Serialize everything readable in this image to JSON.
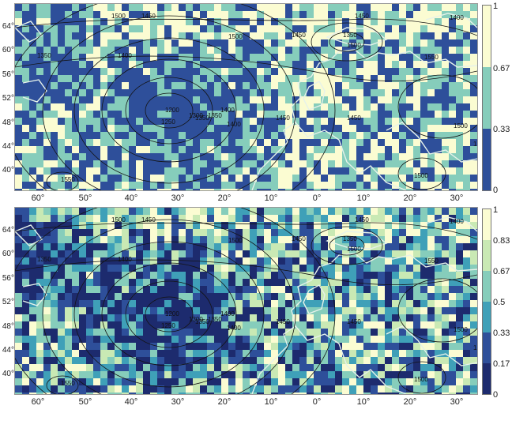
{
  "colors": {
    "palette6": [
      "#1d2b6e",
      "#2e4f9a",
      "#3fa0b8",
      "#86cdbb",
      "#c9e9b4",
      "#fbfcd2"
    ],
    "palette3": [
      "#2e4f9a",
      "#86cdbb",
      "#fbfcd2"
    ],
    "coast": "#e6f2ea",
    "contour": "#141414"
  },
  "panels": [
    {
      "id": "top",
      "colorbar_ticks": [
        "1",
        "0.67",
        "0.33",
        "0"
      ],
      "lat_ticks": [
        "64°",
        "60°",
        "56°",
        "52°",
        "48°",
        "44°",
        "40°"
      ],
      "lon_ticks": [
        "60°",
        "50°",
        "40°",
        "30°",
        "20°",
        "10°",
        "0°",
        "10°",
        "20°",
        "30°"
      ],
      "contour_labels": [
        "1500",
        "1450",
        "1450",
        "1500",
        "1350",
        "1450",
        "1350",
        "1400",
        "1500",
        "1400",
        "1350",
        "1400",
        "1200",
        "1250",
        "1300",
        "1350",
        "1400",
        "1450",
        "1450",
        "1550",
        "1500",
        "1550",
        "1500",
        "1550"
      ]
    },
    {
      "id": "bottom",
      "colorbar_ticks": [
        "1",
        "0.83",
        "0.67",
        "0.5",
        "0.33",
        "0.17",
        "0"
      ],
      "lat_ticks": [
        "64°",
        "60°",
        "56°",
        "52°",
        "48°",
        "44°",
        "40°"
      ],
      "lon_ticks": [
        "60°",
        "50°",
        "40°",
        "30°",
        "20°",
        "10°",
        "0°",
        "10°",
        "20°",
        "30°"
      ],
      "contour_labels": [
        "1500",
        "1450",
        "1450",
        "1500",
        "1350",
        "1450",
        "1350",
        "1400",
        "1500",
        "1400",
        "1350",
        "1400",
        "1200",
        "1250",
        "1300",
        "1350",
        "1400",
        "1450",
        "1450",
        "1550",
        "1500",
        "1550",
        "1500",
        "1550"
      ]
    }
  ]
}
